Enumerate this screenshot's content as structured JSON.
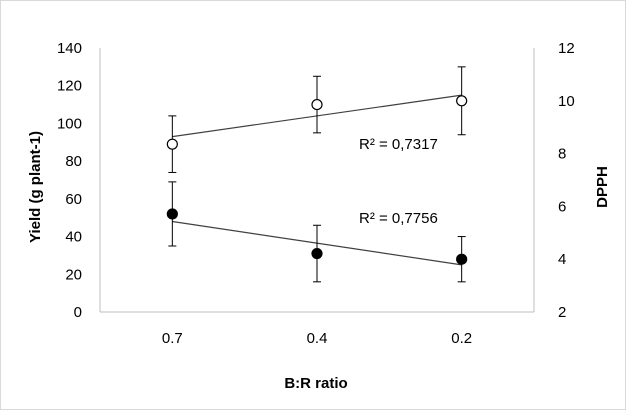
{
  "chart_data": {
    "type": "scatter",
    "categories": [
      "0.7",
      "0.4",
      "0.2"
    ],
    "xlabel": "B:R ratio",
    "ylabel": "Yield (g plant-1)",
    "y2label": "DPPH",
    "ylim": [
      0,
      140
    ],
    "y2lim": [
      2,
      12
    ],
    "yticks": [
      "0",
      "20",
      "40",
      "60",
      "80",
      "100",
      "120",
      "140"
    ],
    "y2ticks": [
      "2",
      "4",
      "6",
      "8",
      "10",
      "12"
    ],
    "grid": false,
    "legend": "none",
    "series": [
      {
        "axis": "left",
        "marker": "filled-circle",
        "color": "#000000",
        "values": [
          52,
          31,
          28
        ],
        "error": [
          17,
          15,
          12
        ],
        "trendline": {
          "start": 48,
          "end": 25
        },
        "r2_label": "R² = 0,7756"
      },
      {
        "axis": "left",
        "marker": "open-circle",
        "color": "#000000",
        "values": [
          89,
          110,
          112
        ],
        "error": [
          15,
          15,
          18
        ],
        "trendline": {
          "start": 93,
          "end": 115
        },
        "r2_label": "R² = 0,7317"
      }
    ]
  }
}
